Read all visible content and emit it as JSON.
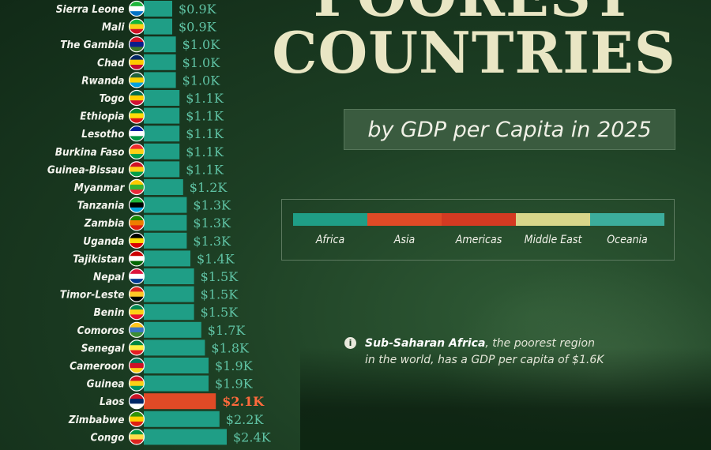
{
  "header": {
    "title_top": "POOREST",
    "title_main": "COUNTRIES",
    "subtitle": "by GDP per Capita in 2025"
  },
  "legend": [
    {
      "label": "Africa",
      "color": "#1f9e86"
    },
    {
      "label": "Asia",
      "color": "#e04a26"
    },
    {
      "label": "Americas",
      "color": "#d43a22"
    },
    {
      "label": "Middle East",
      "color": "#d8d68a"
    },
    {
      "label": "Oceania",
      "color": "#3cad9c"
    }
  ],
  "note": {
    "icon": "info-icon",
    "strong": "Sub-Saharan Africa",
    "text_line1": ", the poorest region",
    "text_line2": "in the world, has a GDP per capita of $1.6K"
  },
  "chart_data": {
    "type": "bar",
    "orientation": "horizontal",
    "title": "POOREST COUNTRIES",
    "subtitle": "by GDP per Capita in 2025",
    "categories": [
      "Sierra Leone",
      "Mali",
      "The Gambia",
      "Chad",
      "Rwanda",
      "Togo",
      "Ethiopia",
      "Lesotho",
      "Burkina Faso",
      "Guinea-Bissau",
      "Myanmar",
      "Tanzania",
      "Zambia",
      "Uganda",
      "Tajikistan",
      "Nepal",
      "Timor-Leste",
      "Benin",
      "Comoros",
      "Senegal",
      "Cameroon",
      "Guinea",
      "Laos",
      "Zimbabwe",
      "Congo"
    ],
    "values": [
      0.9,
      0.9,
      1.0,
      1.0,
      1.0,
      1.1,
      1.1,
      1.1,
      1.1,
      1.1,
      1.2,
      1.3,
      1.3,
      1.3,
      1.4,
      1.5,
      1.5,
      1.5,
      1.7,
      1.8,
      1.9,
      1.9,
      2.1,
      2.2,
      2.4
    ],
    "value_labels": [
      "$0.9K",
      "$0.9K",
      "$1.0K",
      "$1.0K",
      "$1.0K",
      "$1.1K",
      "$1.1K",
      "$1.1K",
      "$1.1K",
      "$1.1K",
      "$1.2K",
      "$1.3K",
      "$1.3K",
      "$1.3K",
      "$1.4K",
      "$1.5K",
      "$1.5K",
      "$1.5K",
      "$1.7K",
      "$1.8K",
      "$1.9K",
      "$1.9K",
      "$2.1K",
      "$2.2K",
      "$2.4K"
    ],
    "regions": [
      "Africa",
      "Africa",
      "Africa",
      "Africa",
      "Africa",
      "Africa",
      "Africa",
      "Africa",
      "Africa",
      "Africa",
      "Asia",
      "Africa",
      "Africa",
      "Africa",
      "Asia",
      "Asia",
      "Asia",
      "Africa",
      "Africa",
      "Africa",
      "Africa",
      "Africa",
      "Asia",
      "Africa",
      "Africa"
    ],
    "bar_colors": [
      "#1f9e86",
      "#1f9e86",
      "#1f9e86",
      "#1f9e86",
      "#1f9e86",
      "#1f9e86",
      "#1f9e86",
      "#1f9e86",
      "#1f9e86",
      "#1f9e86",
      "#1f9e86",
      "#1f9e86",
      "#1f9e86",
      "#1f9e86",
      "#1f9e86",
      "#1f9e86",
      "#1f9e86",
      "#1f9e86",
      "#1f9e86",
      "#1f9e86",
      "#1f9e86",
      "#1f9e86",
      "#e04a26",
      "#1f9e86",
      "#1f9e86"
    ],
    "label_colors": [
      "#5fc2a4",
      "#5fc2a4",
      "#5fc2a4",
      "#5fc2a4",
      "#5fc2a4",
      "#5fc2a4",
      "#5fc2a4",
      "#5fc2a4",
      "#5fc2a4",
      "#5fc2a4",
      "#5fc2a4",
      "#5fc2a4",
      "#5fc2a4",
      "#5fc2a4",
      "#5fc2a4",
      "#5fc2a4",
      "#5fc2a4",
      "#5fc2a4",
      "#5fc2a4",
      "#5fc2a4",
      "#5fc2a4",
      "#5fc2a4",
      "#ff6a3c",
      "#5fc2a4",
      "#5fc2a4"
    ],
    "flags": [
      [
        "#1eb53a",
        "#ffffff",
        "#0072c6"
      ],
      [
        "#14b53a",
        "#fcd116",
        "#ce1126"
      ],
      [
        "#ce1126",
        "#0c1c8c",
        "#3a7728"
      ],
      [
        "#002664",
        "#fecb00",
        "#c60c30"
      ],
      [
        "#20603d",
        "#fad201",
        "#00a1de"
      ],
      [
        "#006a4e",
        "#ffce00",
        "#d21034"
      ],
      [
        "#078930",
        "#fcdd09",
        "#da121a"
      ],
      [
        "#00209f",
        "#ffffff",
        "#009543"
      ],
      [
        "#ef2b2d",
        "#fcd116",
        "#009e49"
      ],
      [
        "#ce1126",
        "#fcd116",
        "#009e49"
      ],
      [
        "#fecb00",
        "#34b233",
        "#ea2839"
      ],
      [
        "#1eb53a",
        "#000000",
        "#00a3dd"
      ],
      [
        "#198a00",
        "#ef7d00",
        "#de2010"
      ],
      [
        "#000000",
        "#fcdc04",
        "#d90000"
      ],
      [
        "#cc0000",
        "#ffffff",
        "#006600"
      ],
      [
        "#dc143c",
        "#ffffff",
        "#003893"
      ],
      [
        "#dc241f",
        "#ffc726",
        "#000000"
      ],
      [
        "#008751",
        "#fcd116",
        "#e8112d"
      ],
      [
        "#ffc61e",
        "#3a75c4",
        "#3d8e33"
      ],
      [
        "#00853f",
        "#fdef42",
        "#e31b23"
      ],
      [
        "#007a5e",
        "#ce1126",
        "#fcd116"
      ],
      [
        "#ce1126",
        "#fcd116",
        "#009460"
      ],
      [
        "#ce1126",
        "#002868",
        "#ffffff"
      ],
      [
        "#319208",
        "#ffd200",
        "#de2010"
      ],
      [
        "#009543",
        "#fbde4a",
        "#dc241f"
      ]
    ],
    "xlim": [
      0,
      2.4
    ]
  }
}
